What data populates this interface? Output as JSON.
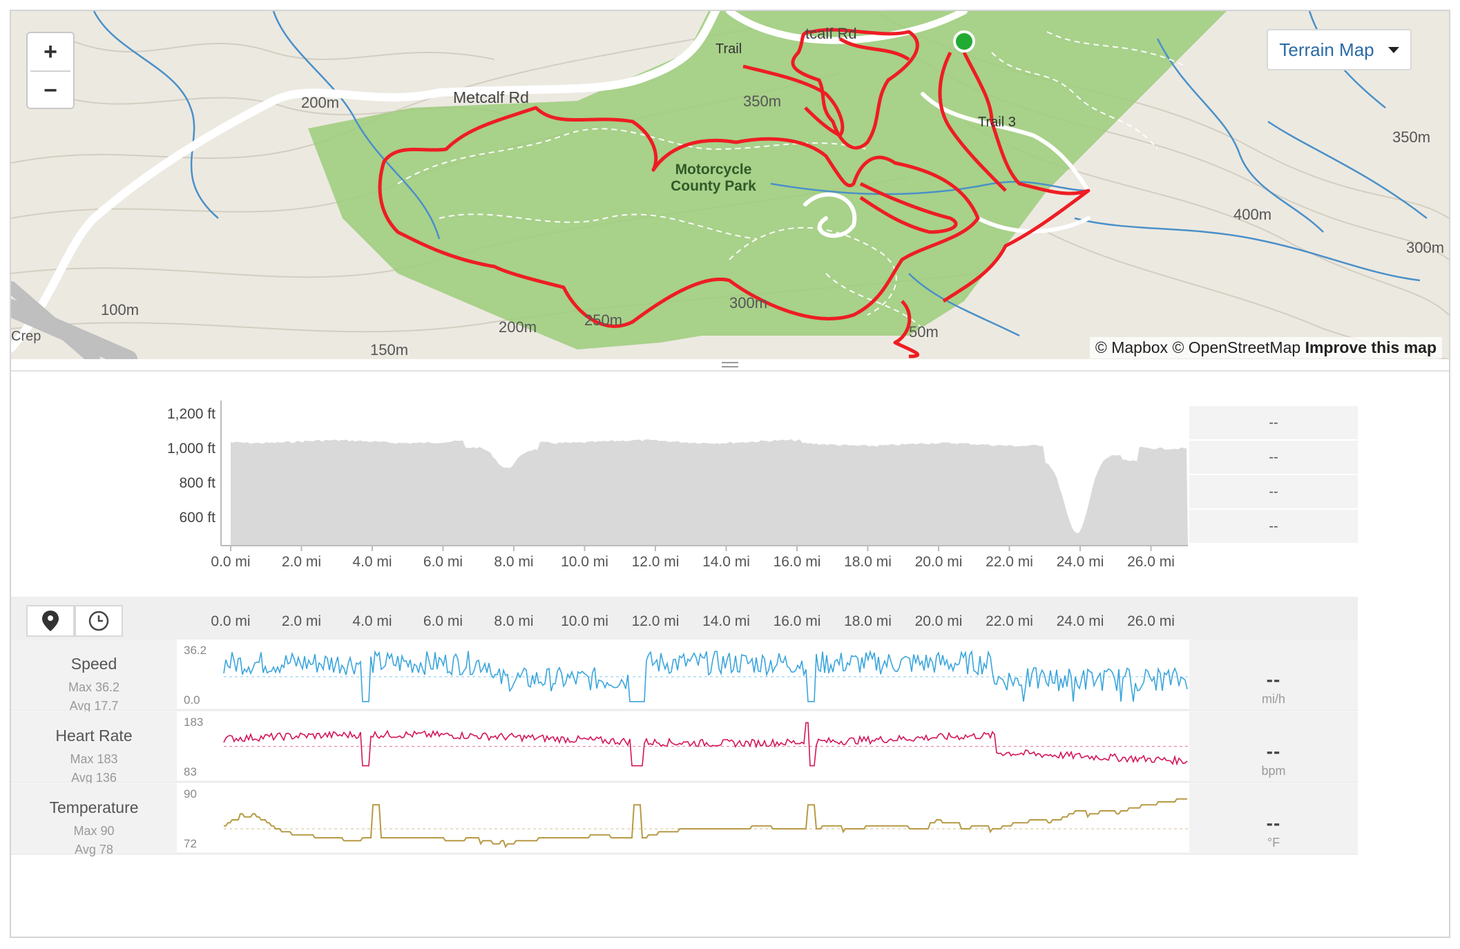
{
  "map": {
    "zoom_in": "+",
    "zoom_out": "−",
    "layer_button": "Terrain Map",
    "attribution_1": "© Mapbox",
    "attribution_2": "© OpenStreetMap",
    "attribution_link": "Improve this map",
    "labels": {
      "metcalf_rd": "Metcalf Rd",
      "metcalf_rd_top": "tcalf Rd",
      "trail_3": "Trail 3",
      "trail": "Trail",
      "park_line1": "Motorcycle",
      "park_line2": "County Park",
      "contour_200_a": "200m",
      "contour_200_b": "200m",
      "contour_350_a": "350m",
      "contour_350_b": "350m",
      "contour_300_a": "300m",
      "contour_300_b": "300m",
      "contour_400": "400m",
      "contour_250": "250m",
      "contour_150": "150m",
      "contour_100": "100m",
      "contour_50": "50m",
      "crep": "Crep"
    },
    "colors": {
      "route": "#ee1d23",
      "park": "#9ccc7a",
      "water": "#4a90c8",
      "start": "#22aa33"
    }
  },
  "elevation": {
    "y_ticks": [
      "1,200 ft",
      "1,000 ft",
      "800 ft",
      "600 ft"
    ],
    "x_ticks": [
      "0.0 mi",
      "2.0 mi",
      "4.0 mi",
      "6.0 mi",
      "8.0 mi",
      "10.0 mi",
      "12.0 mi",
      "14.0 mi",
      "16.0 mi",
      "18.0 mi",
      "20.0 mi",
      "22.0 mi",
      "24.0 mi",
      "26.0 mi"
    ],
    "side_values": [
      "--",
      "--",
      "--",
      "--"
    ],
    "fill_color": "#d9d9d9"
  },
  "streams": {
    "view_toggle_icons": [
      "map-pin-icon",
      "clock-icon"
    ],
    "x_ticks": [
      "0.0 mi",
      "2.0 mi",
      "4.0 mi",
      "6.0 mi",
      "8.0 mi",
      "10.0 mi",
      "12.0 mi",
      "14.0 mi",
      "16.0 mi",
      "18.0 mi",
      "20.0 mi",
      "22.0 mi",
      "24.0 mi",
      "26.0 mi"
    ],
    "rows": [
      {
        "name": "Speed",
        "max_label": "Max 36.2",
        "avg_label": "Avg 17.7",
        "axis_max": "36.2",
        "axis_min": "0.0",
        "value": "--",
        "unit": "mi/h",
        "color": "#3aa5dc",
        "max": 36.2,
        "min": 0.0,
        "avg": 17.7
      },
      {
        "name": "Heart Rate",
        "max_label": "Max 183",
        "avg_label": "Avg 136",
        "axis_max": "183",
        "axis_min": "83",
        "value": "--",
        "unit": "bpm",
        "color": "#d4145a",
        "max": 183,
        "min": 83,
        "avg": 136
      },
      {
        "name": "Temperature",
        "max_label": "Max 90",
        "avg_label": "Avg 78",
        "axis_max": "90",
        "axis_min": "72",
        "value": "--",
        "unit": "°F",
        "color": "#b79a45",
        "max": 90,
        "min": 72,
        "avg": 78
      }
    ]
  }
}
